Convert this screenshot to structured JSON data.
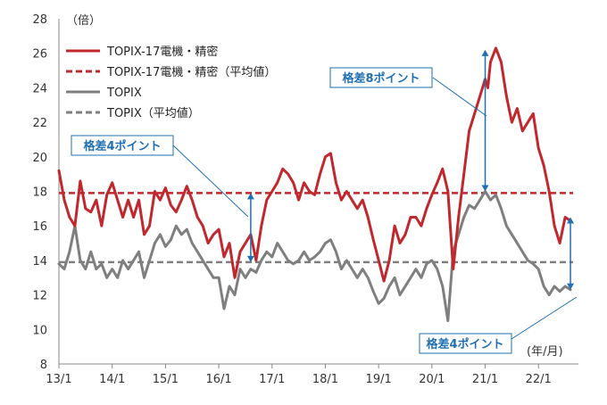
{
  "chart_data": {
    "type": "line",
    "y_unit_label": "（倍）",
    "x_unit_label": "(年/月)",
    "ylim": [
      8,
      28
    ],
    "y_ticks": [
      8,
      10,
      12,
      14,
      16,
      18,
      20,
      22,
      24,
      26,
      28
    ],
    "x_range": [
      2013.0,
      2022.75
    ],
    "x_ticks": [
      {
        "label": "13/1",
        "x": 2013.0
      },
      {
        "label": "14/1",
        "x": 2014.0
      },
      {
        "label": "15/1",
        "x": 2015.0
      },
      {
        "label": "16/1",
        "x": 2016.0
      },
      {
        "label": "17/1",
        "x": 2017.0
      },
      {
        "label": "18/1",
        "x": 2018.0
      },
      {
        "label": "19/1",
        "x": 2019.0
      },
      {
        "label": "20/1",
        "x": 2020.0
      },
      {
        "label": "21/1",
        "x": 2021.0
      },
      {
        "label": "22/1",
        "x": 2022.0
      }
    ],
    "grid": false,
    "legend_position": "top-left",
    "series": [
      {
        "name": "TOPIX-17電機・精密",
        "style": "solid",
        "color": "#c0282d",
        "x": [
          2013.0,
          2013.1,
          2013.2,
          2013.3,
          2013.4,
          2013.5,
          2013.6,
          2013.7,
          2013.8,
          2013.9,
          2014.0,
          2014.1,
          2014.2,
          2014.3,
          2014.4,
          2014.5,
          2014.6,
          2014.7,
          2014.8,
          2014.9,
          2015.0,
          2015.1,
          2015.2,
          2015.3,
          2015.4,
          2015.5,
          2015.6,
          2015.7,
          2015.8,
          2015.9,
          2016.0,
          2016.1,
          2016.2,
          2016.3,
          2016.4,
          2016.5,
          2016.6,
          2016.7,
          2016.8,
          2016.9,
          2017.0,
          2017.1,
          2017.2,
          2017.3,
          2017.4,
          2017.5,
          2017.6,
          2017.7,
          2017.8,
          2017.9,
          2018.0,
          2018.1,
          2018.2,
          2018.3,
          2018.4,
          2018.5,
          2018.6,
          2018.7,
          2018.8,
          2018.9,
          2019.0,
          2019.1,
          2019.2,
          2019.3,
          2019.4,
          2019.5,
          2019.6,
          2019.7,
          2019.8,
          2019.9,
          2020.0,
          2020.1,
          2020.2,
          2020.3,
          2020.4,
          2020.5,
          2020.6,
          2020.7,
          2020.8,
          2020.9,
          2021.0,
          2021.05,
          2021.1,
          2021.2,
          2021.3,
          2021.4,
          2021.5,
          2021.6,
          2021.7,
          2021.8,
          2021.9,
          2022.0,
          2022.1,
          2022.2,
          2022.3,
          2022.4,
          2022.5,
          2022.6
        ],
        "values": [
          19.2,
          17.5,
          16.5,
          16.0,
          18.6,
          17.0,
          16.8,
          17.5,
          16.0,
          17.8,
          18.5,
          17.5,
          16.5,
          17.5,
          16.5,
          17.5,
          15.5,
          16.0,
          18.0,
          17.5,
          18.2,
          17.2,
          16.8,
          17.5,
          18.3,
          17.5,
          16.5,
          16.0,
          15.0,
          15.5,
          15.8,
          14.2,
          15.0,
          13.0,
          14.5,
          15.0,
          15.5,
          14.0,
          16.0,
          17.5,
          18.0,
          18.5,
          19.3,
          19.0,
          18.5,
          17.5,
          18.5,
          18.0,
          17.8,
          19.0,
          20.0,
          20.2,
          18.5,
          17.5,
          18.0,
          17.5,
          17.0,
          17.5,
          16.5,
          15.2,
          14.0,
          12.8,
          14.0,
          16.0,
          15.0,
          15.5,
          16.5,
          16.5,
          16.0,
          17.0,
          17.8,
          18.5,
          19.3,
          18.0,
          13.5,
          16.5,
          19.0,
          21.5,
          22.5,
          23.5,
          24.5,
          24.0,
          25.5,
          26.3,
          25.5,
          23.5,
          22.0,
          22.8,
          21.5,
          22.0,
          22.5,
          20.5,
          19.5,
          18.0,
          16.0,
          15.0,
          16.5,
          16.3
        ]
      },
      {
        "name": "TOPIX-17電機・精密（平均値）",
        "style": "dashed",
        "color": "#c0282d",
        "constant": 17.9
      },
      {
        "name": "TOPIX",
        "style": "solid",
        "color": "#7f7f7f",
        "x": [
          2013.0,
          2013.1,
          2013.2,
          2013.3,
          2013.4,
          2013.5,
          2013.6,
          2013.7,
          2013.8,
          2013.9,
          2014.0,
          2014.1,
          2014.2,
          2014.3,
          2014.4,
          2014.5,
          2014.6,
          2014.7,
          2014.8,
          2014.9,
          2015.0,
          2015.1,
          2015.2,
          2015.3,
          2015.4,
          2015.5,
          2015.6,
          2015.7,
          2015.8,
          2015.9,
          2016.0,
          2016.1,
          2016.2,
          2016.3,
          2016.4,
          2016.5,
          2016.6,
          2016.7,
          2016.8,
          2016.9,
          2017.0,
          2017.1,
          2017.2,
          2017.3,
          2017.4,
          2017.5,
          2017.6,
          2017.7,
          2017.8,
          2017.9,
          2018.0,
          2018.1,
          2018.2,
          2018.3,
          2018.4,
          2018.5,
          2018.6,
          2018.7,
          2018.8,
          2018.9,
          2019.0,
          2019.1,
          2019.2,
          2019.3,
          2019.4,
          2019.5,
          2019.6,
          2019.7,
          2019.8,
          2019.9,
          2020.0,
          2020.1,
          2020.2,
          2020.3,
          2020.4,
          2020.5,
          2020.6,
          2020.7,
          2020.8,
          2020.9,
          2021.0,
          2021.1,
          2021.2,
          2021.3,
          2021.4,
          2021.5,
          2021.6,
          2021.7,
          2021.8,
          2021.9,
          2022.0,
          2022.1,
          2022.2,
          2022.3,
          2022.4,
          2022.5,
          2022.6
        ],
        "values": [
          13.8,
          13.5,
          14.5,
          16.0,
          14.0,
          13.5,
          14.5,
          13.5,
          13.8,
          13.0,
          13.5,
          13.0,
          14.0,
          13.5,
          14.0,
          14.5,
          13.0,
          14.0,
          15.0,
          15.5,
          14.8,
          15.2,
          16.0,
          15.5,
          15.8,
          15.0,
          14.5,
          14.0,
          13.5,
          13.0,
          13.0,
          11.2,
          12.5,
          12.0,
          13.5,
          13.0,
          13.5,
          13.3,
          14.0,
          14.5,
          14.2,
          15.0,
          14.5,
          14.0,
          13.8,
          14.0,
          14.5,
          14.0,
          14.2,
          14.5,
          15.0,
          15.2,
          14.5,
          13.5,
          14.0,
          13.5,
          13.0,
          13.5,
          13.0,
          12.2,
          11.5,
          11.8,
          12.5,
          13.0,
          12.0,
          12.5,
          13.0,
          13.5,
          13.0,
          13.8,
          14.0,
          13.5,
          12.5,
          10.5,
          14.5,
          15.5,
          16.5,
          17.2,
          17.0,
          17.5,
          18.0,
          17.5,
          17.8,
          17.0,
          16.0,
          15.5,
          15.0,
          14.5,
          14.0,
          13.8,
          13.5,
          12.5,
          12.0,
          12.5,
          12.2,
          12.5,
          12.3
        ]
      },
      {
        "name": "TOPIX（平均値）",
        "style": "dashed",
        "color": "#7f7f7f",
        "constant": 13.9
      }
    ],
    "annotations": [
      {
        "text": "格差4ポイント",
        "x": 2016.6,
        "y_from": 17.9,
        "y_to": 13.9
      },
      {
        "text": "格差8ポイント",
        "x": 2021.0,
        "y_from": 26.2,
        "y_to": 18.0
      },
      {
        "text": "格差4ポイント",
        "x": 2022.6,
        "y_from": 16.5,
        "y_to": 12.3
      }
    ]
  }
}
